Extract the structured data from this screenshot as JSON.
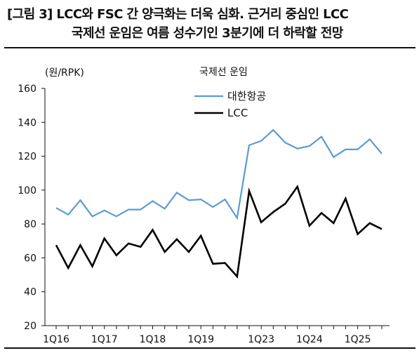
{
  "title": {
    "line1": "[그림 3] LCC와 FSC 간 양극화는 더욱 심화. 근거리 중심인 LCC",
    "line2": "국제선 운임은 여름 성수기인 3분기에 더 하락할 전망"
  },
  "chart_data": {
    "type": "line",
    "ylabel": "(원/RPK)",
    "ylim": [
      20,
      160
    ],
    "yticks": [
      20,
      40,
      60,
      80,
      100,
      120,
      140,
      160
    ],
    "grid": false,
    "legend": {
      "title": "국제선 운임",
      "position": "top-center"
    },
    "x_tick_labels": [
      "1Q16",
      "1Q17",
      "1Q18",
      "1Q19",
      "1Q23",
      "1Q24",
      "1Q25"
    ],
    "x_tick_positions": [
      0,
      4,
      8,
      12,
      17,
      21,
      25
    ],
    "n_points": 28,
    "series": [
      {
        "name": "대한항공",
        "color": "#5b9bd5",
        "values": [
          89.5,
          85.5,
          94.0,
          84.5,
          88.0,
          84.5,
          88.5,
          88.5,
          93.5,
          89.0,
          98.5,
          94.0,
          94.5,
          90.0,
          94.5,
          83.5,
          126.5,
          129.0,
          135.5,
          128.0,
          124.5,
          126.0,
          131.5,
          119.5,
          124.0,
          124.0,
          130.0,
          121.5
        ]
      },
      {
        "name": "LCC",
        "color": "#000000",
        "values": [
          67.5,
          54.0,
          67.5,
          55.0,
          71.5,
          61.5,
          68.5,
          66.5,
          76.5,
          63.5,
          71.0,
          63.5,
          73.0,
          56.5,
          57.0,
          49.0,
          99.5,
          81.0,
          87.0,
          92.0,
          102.0,
          79.0,
          86.5,
          80.5,
          95.0,
          74.0,
          80.5,
          77.0
        ]
      }
    ]
  }
}
